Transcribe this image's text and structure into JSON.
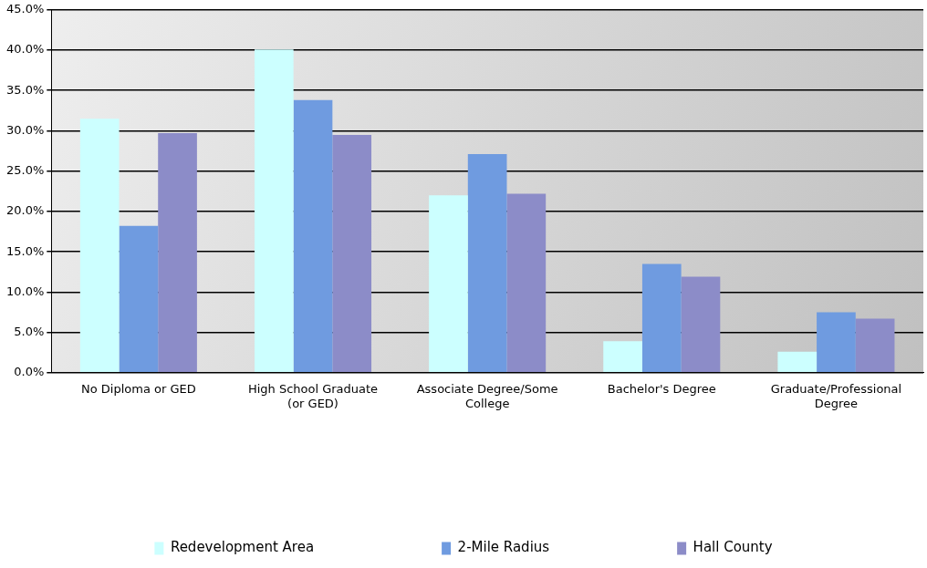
{
  "chart_data": {
    "type": "bar",
    "categories": [
      "No Diploma or GED",
      "High School Graduate (or GED)",
      "Associate Degree/Some College",
      "Bachelor's Degree",
      "Graduate/Professional Degree"
    ],
    "series": [
      {
        "name": "Redevelopment Area",
        "color": "#ccffff",
        "values": [
          31.5,
          40.1,
          22.0,
          3.9,
          2.6
        ]
      },
      {
        "name": "2-Mile Radius",
        "color": "#6f9be0",
        "values": [
          18.2,
          33.8,
          27.1,
          13.5,
          7.5
        ]
      },
      {
        "name": "Hall County",
        "color": "#8c8cc8",
        "values": [
          29.7,
          29.5,
          22.2,
          11.9,
          6.7
        ]
      }
    ],
    "ylim": [
      0,
      45
    ],
    "yticks": [
      {
        "value": 0,
        "label": "0.0%"
      },
      {
        "value": 5,
        "label": "5.0%"
      },
      {
        "value": 10,
        "label": "10.0%"
      },
      {
        "value": 15,
        "label": "15.0%"
      },
      {
        "value": 20,
        "label": "20.0%"
      },
      {
        "value": 25,
        "label": "25.0%"
      },
      {
        "value": 30,
        "label": "30.0%"
      },
      {
        "value": 35,
        "label": "35.0%"
      },
      {
        "value": 40,
        "label": "40.0%"
      },
      {
        "value": 45,
        "label": "45.0%"
      }
    ],
    "grid": "y",
    "legend": "bottom"
  }
}
